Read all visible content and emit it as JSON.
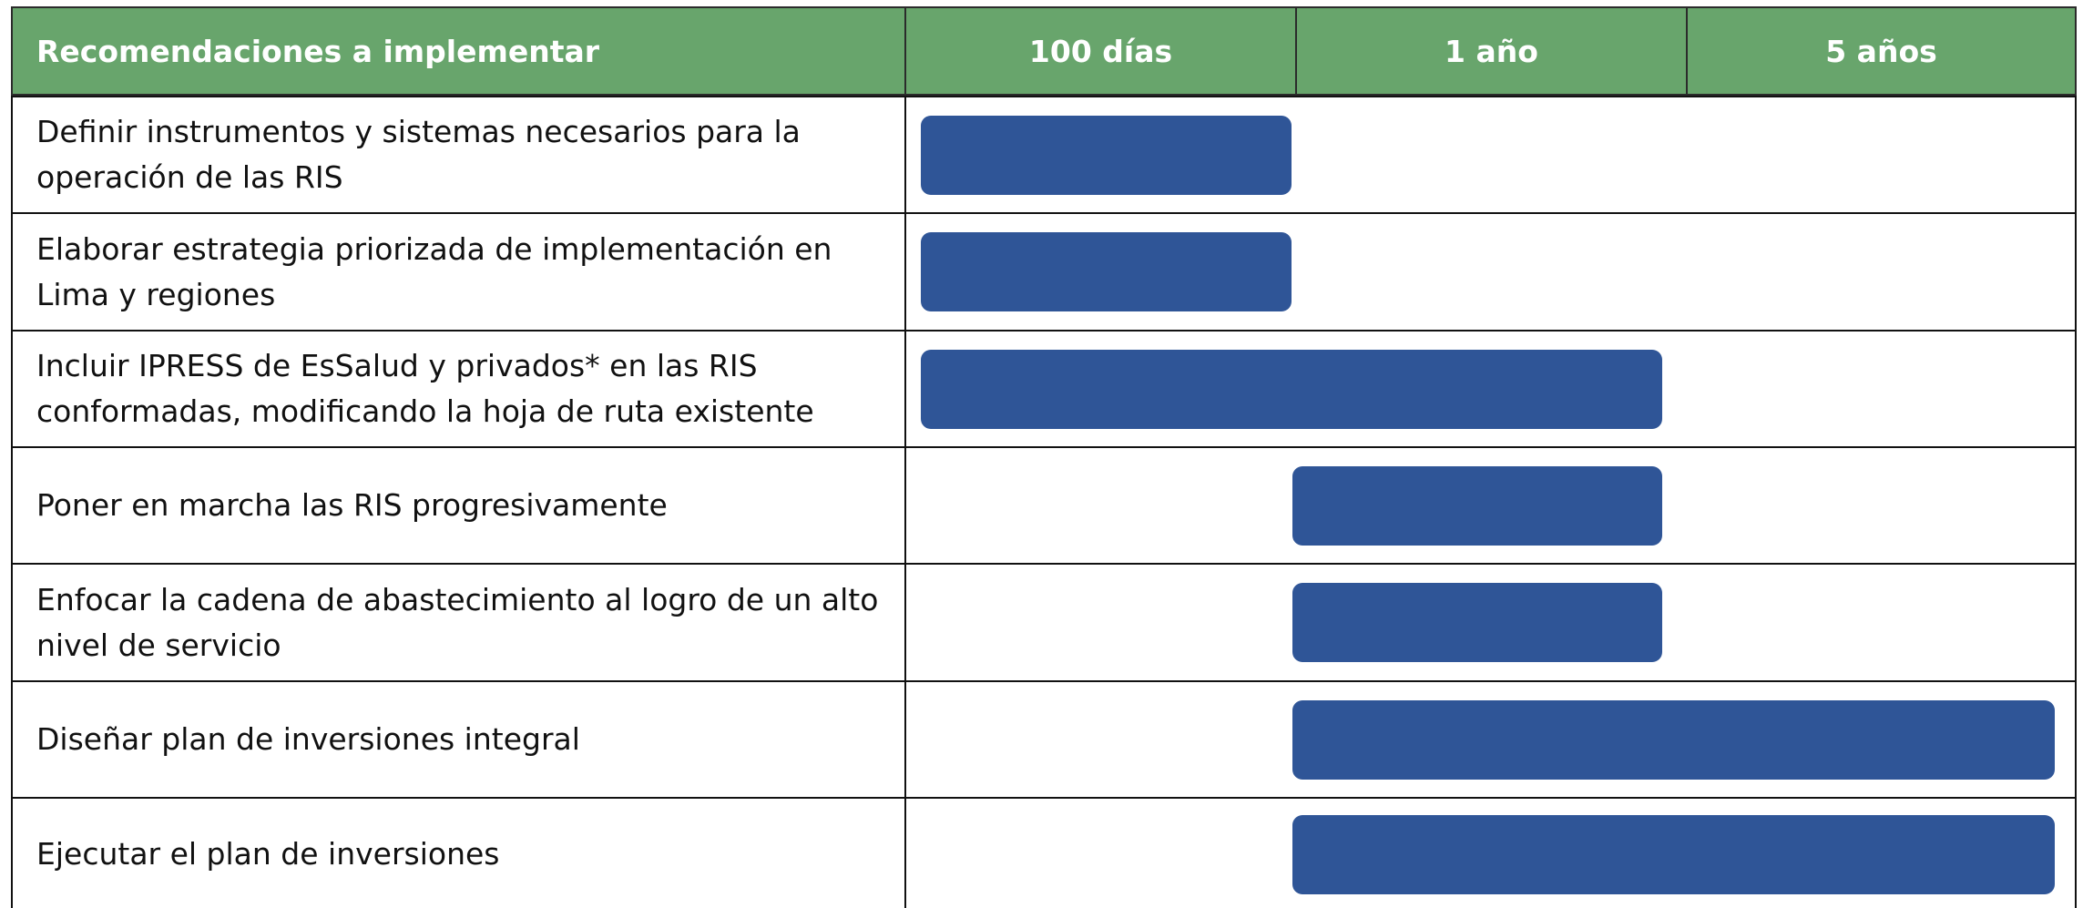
{
  "table": {
    "header": [
      "Recomendaciones a implementar",
      "100 días",
      "1 año",
      "5 años"
    ],
    "rows": [
      "Definir instrumentos y sistemas necesarios para la operación de las RIS",
      "Elaborar estrategia priorizada de implementación en Lima y regiones",
      "Incluir IPRESS de EsSalud y privados* en las RIS conformadas, modificando la hoja de ruta existente",
      "Poner en marcha las RIS progresivamente",
      "Enfocar la cadena de abastecimiento al logro de un alto nivel de servicio",
      "Diseñar plan de inversiones integral",
      "Ejecutar el plan de inversiones"
    ]
  }
}
